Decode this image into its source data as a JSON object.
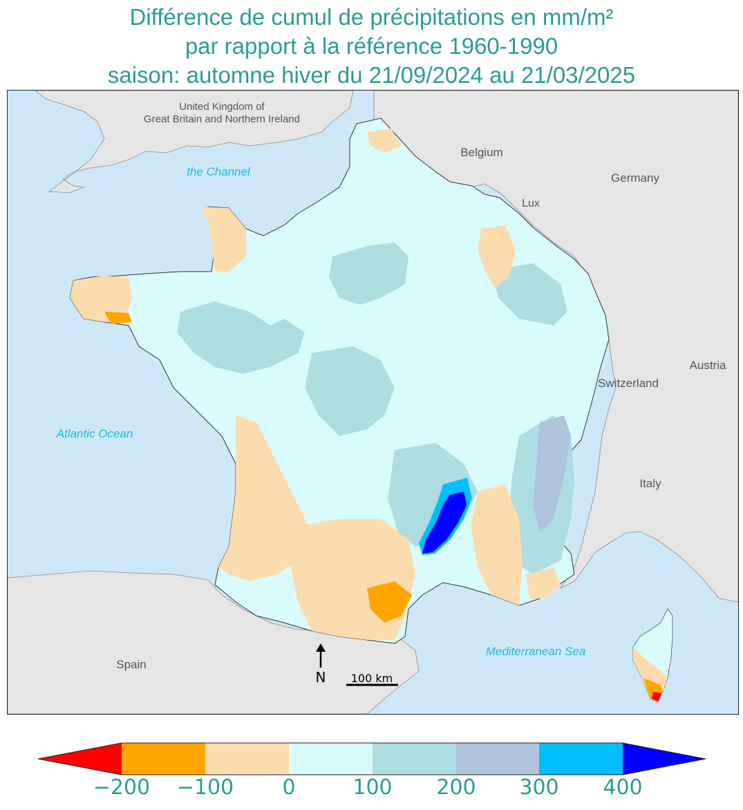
{
  "title": {
    "line1": "Différence de cumul de précipitations en mm/m²",
    "line2": "par rapport à la référence 1960-1990",
    "line3": "saison: automne hiver du 21/09/2024 au 21/03/2025"
  },
  "map_labels": {
    "uk": [
      "United Kingdom of",
      "Great Britain and Northern Ireland"
    ],
    "belgium": "Belgium",
    "germany": "Germany",
    "lux": "Lux",
    "channel": "the Channel",
    "austria": "Austria",
    "switzerland": "Switzerland",
    "atlantic": "Atlantic Ocean",
    "italy": "Italy",
    "spain": "Spain",
    "mediterranean": "Mediterranean Sea",
    "north": "N",
    "scale": "100 km"
  },
  "legend": {
    "ticks": [
      "−200",
      "−100",
      "0",
      "100",
      "200",
      "300",
      "400"
    ],
    "colors": {
      "below_min": "#ff0000",
      "bins": [
        "#ffa500",
        "#fbdcae",
        "#d9fbfb",
        "#aedde2",
        "#b0c4de",
        "#00bfff"
      ],
      "above_max": "#0000ff"
    }
  },
  "colors": {
    "title": "#2a9d94",
    "sea": "#cfe8f8",
    "land_other": "#e6e6e6",
    "sea_label": "#1fb8d8"
  }
}
